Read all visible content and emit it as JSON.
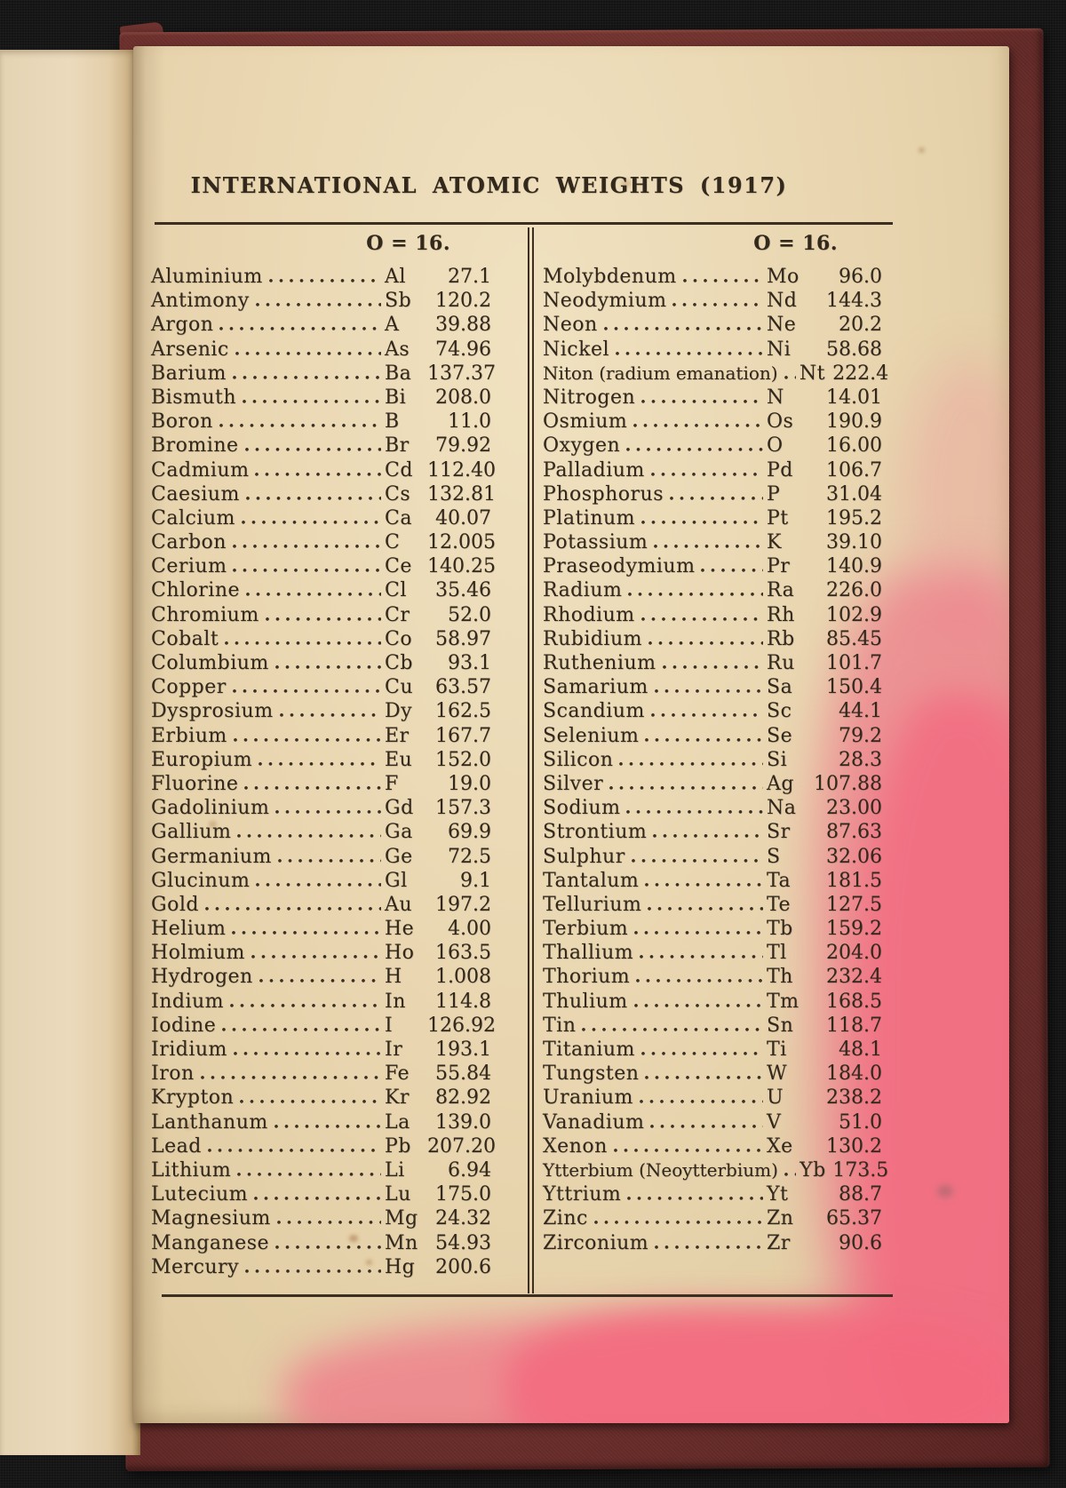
{
  "page_title": "INTERNATIONAL ATOMIC WEIGHTS (1917)",
  "palette": {
    "paper": "#e9d6b0",
    "ink": "#32281c",
    "cover_maroon": "#6d302c",
    "stain_pink": "#ef7a8c",
    "background_black": "#141414"
  },
  "table": {
    "columns": [
      {
        "header": "O = 16.",
        "rows": [
          {
            "name": "Aluminium",
            "symbol": "Al",
            "weight": "27.1"
          },
          {
            "name": "Antimony",
            "symbol": "Sb",
            "weight": "120.2"
          },
          {
            "name": "Argon",
            "symbol": "A",
            "weight": "39.88"
          },
          {
            "name": "Arsenic",
            "symbol": "As",
            "weight": "74.96"
          },
          {
            "name": "Barium",
            "symbol": "Ba",
            "weight": "137.37"
          },
          {
            "name": "Bismuth",
            "symbol": "Bi",
            "weight": "208.0"
          },
          {
            "name": "Boron",
            "symbol": "B",
            "weight": "11.0"
          },
          {
            "name": "Bromine",
            "symbol": "Br",
            "weight": "79.92"
          },
          {
            "name": "Cadmium",
            "symbol": "Cd",
            "weight": "112.40"
          },
          {
            "name": "Caesium",
            "symbol": "Cs",
            "weight": "132.81"
          },
          {
            "name": "Calcium",
            "symbol": "Ca",
            "weight": "40.07"
          },
          {
            "name": "Carbon",
            "symbol": "C",
            "weight": "12.005"
          },
          {
            "name": "Cerium",
            "symbol": "Ce",
            "weight": "140.25"
          },
          {
            "name": "Chlorine",
            "symbol": "Cl",
            "weight": "35.46"
          },
          {
            "name": "Chromium",
            "symbol": "Cr",
            "weight": "52.0"
          },
          {
            "name": "Cobalt",
            "symbol": "Co",
            "weight": "58.97"
          },
          {
            "name": "Columbium",
            "symbol": "Cb",
            "weight": "93.1"
          },
          {
            "name": "Copper",
            "symbol": "Cu",
            "weight": "63.57"
          },
          {
            "name": "Dysprosium",
            "symbol": "Dy",
            "weight": "162.5"
          },
          {
            "name": "Erbium",
            "symbol": "Er",
            "weight": "167.7"
          },
          {
            "name": "Europium",
            "symbol": "Eu",
            "weight": "152.0"
          },
          {
            "name": "Fluorine",
            "symbol": "F",
            "weight": "19.0"
          },
          {
            "name": "Gadolinium",
            "symbol": "Gd",
            "weight": "157.3"
          },
          {
            "name": "Gallium",
            "symbol": "Ga",
            "weight": "69.9"
          },
          {
            "name": "Germanium",
            "symbol": "Ge",
            "weight": "72.5"
          },
          {
            "name": "Glucinum",
            "symbol": "Gl",
            "weight": "9.1"
          },
          {
            "name": "Gold",
            "symbol": "Au",
            "weight": "197.2"
          },
          {
            "name": "Helium",
            "symbol": "He",
            "weight": "4.00"
          },
          {
            "name": "Holmium",
            "symbol": "Ho",
            "weight": "163.5"
          },
          {
            "name": "Hydrogen",
            "symbol": "H",
            "weight": "1.008"
          },
          {
            "name": "Indium",
            "symbol": "In",
            "weight": "114.8"
          },
          {
            "name": "Iodine",
            "symbol": "I",
            "weight": "126.92"
          },
          {
            "name": "Iridium",
            "symbol": "Ir",
            "weight": "193.1"
          },
          {
            "name": "Iron",
            "symbol": "Fe",
            "weight": "55.84"
          },
          {
            "name": "Krypton",
            "symbol": "Kr",
            "weight": "82.92"
          },
          {
            "name": "Lanthanum",
            "symbol": "La",
            "weight": "139.0"
          },
          {
            "name": "Lead",
            "symbol": "Pb",
            "weight": "207.20"
          },
          {
            "name": "Lithium",
            "symbol": "Li",
            "weight": "6.94"
          },
          {
            "name": "Lutecium",
            "symbol": "Lu",
            "weight": "175.0"
          },
          {
            "name": "Magnesium",
            "symbol": "Mg",
            "weight": "24.32"
          },
          {
            "name": "Manganese",
            "symbol": "Mn",
            "weight": "54.93"
          },
          {
            "name": "Mercury",
            "symbol": "Hg",
            "weight": "200.6"
          }
        ]
      },
      {
        "header": "O = 16.",
        "rows": [
          {
            "name": "Molybdenum",
            "symbol": "Mo",
            "weight": "96.0"
          },
          {
            "name": "Neodymium",
            "symbol": "Nd",
            "weight": "144.3"
          },
          {
            "name": "Neon",
            "symbol": "Ne",
            "weight": "20.2"
          },
          {
            "name": "Nickel",
            "symbol": "Ni",
            "weight": "58.68"
          },
          {
            "name": "Niton (radium emanation)",
            "symbol": "Nt",
            "weight": "222.4"
          },
          {
            "name": "Nitrogen",
            "symbol": "N",
            "weight": "14.01"
          },
          {
            "name": "Osmium",
            "symbol": "Os",
            "weight": "190.9"
          },
          {
            "name": "Oxygen",
            "symbol": "O",
            "weight": "16.00"
          },
          {
            "name": "Palladium",
            "symbol": "Pd",
            "weight": "106.7"
          },
          {
            "name": "Phosphorus",
            "symbol": "P",
            "weight": "31.04"
          },
          {
            "name": "Platinum",
            "symbol": "Pt",
            "weight": "195.2"
          },
          {
            "name": "Potassium",
            "symbol": "K",
            "weight": "39.10"
          },
          {
            "name": "Praseodymium",
            "symbol": "Pr",
            "weight": "140.9"
          },
          {
            "name": "Radium",
            "symbol": "Ra",
            "weight": "226.0"
          },
          {
            "name": "Rhodium",
            "symbol": "Rh",
            "weight": "102.9"
          },
          {
            "name": "Rubidium",
            "symbol": "Rb",
            "weight": "85.45"
          },
          {
            "name": "Ruthenium",
            "symbol": "Ru",
            "weight": "101.7"
          },
          {
            "name": "Samarium",
            "symbol": "Sa",
            "weight": "150.4"
          },
          {
            "name": "Scandium",
            "symbol": "Sc",
            "weight": "44.1"
          },
          {
            "name": "Selenium",
            "symbol": "Se",
            "weight": "79.2"
          },
          {
            "name": "Silicon",
            "symbol": "Si",
            "weight": "28.3"
          },
          {
            "name": "Silver",
            "symbol": "Ag",
            "weight": "107.88"
          },
          {
            "name": "Sodium",
            "symbol": "Na",
            "weight": "23.00"
          },
          {
            "name": "Strontium",
            "symbol": "Sr",
            "weight": "87.63"
          },
          {
            "name": "Sulphur",
            "symbol": "S",
            "weight": "32.06"
          },
          {
            "name": "Tantalum",
            "symbol": "Ta",
            "weight": "181.5"
          },
          {
            "name": "Tellurium",
            "symbol": "Te",
            "weight": "127.5"
          },
          {
            "name": "Terbium",
            "symbol": "Tb",
            "weight": "159.2"
          },
          {
            "name": "Thallium",
            "symbol": "Tl",
            "weight": "204.0"
          },
          {
            "name": "Thorium",
            "symbol": "Th",
            "weight": "232.4"
          },
          {
            "name": "Thulium",
            "symbol": "Tm",
            "weight": "168.5"
          },
          {
            "name": "Tin",
            "symbol": "Sn",
            "weight": "118.7"
          },
          {
            "name": "Titanium",
            "symbol": "Ti",
            "weight": "48.1"
          },
          {
            "name": "Tungsten",
            "symbol": "W",
            "weight": "184.0"
          },
          {
            "name": "Uranium",
            "symbol": "U",
            "weight": "238.2"
          },
          {
            "name": "Vanadium",
            "symbol": "V",
            "weight": "51.0"
          },
          {
            "name": "Xenon",
            "symbol": "Xe",
            "weight": "130.2"
          },
          {
            "name": "Ytterbium (Neoytterbium)",
            "symbol": "Yb",
            "weight": "173.5"
          },
          {
            "name": "Yttrium",
            "symbol": "Yt",
            "weight": "88.7"
          },
          {
            "name": "Zinc",
            "symbol": "Zn",
            "weight": "65.37"
          },
          {
            "name": "Zirconium",
            "symbol": "Zr",
            "weight": "90.6"
          }
        ]
      }
    ]
  }
}
